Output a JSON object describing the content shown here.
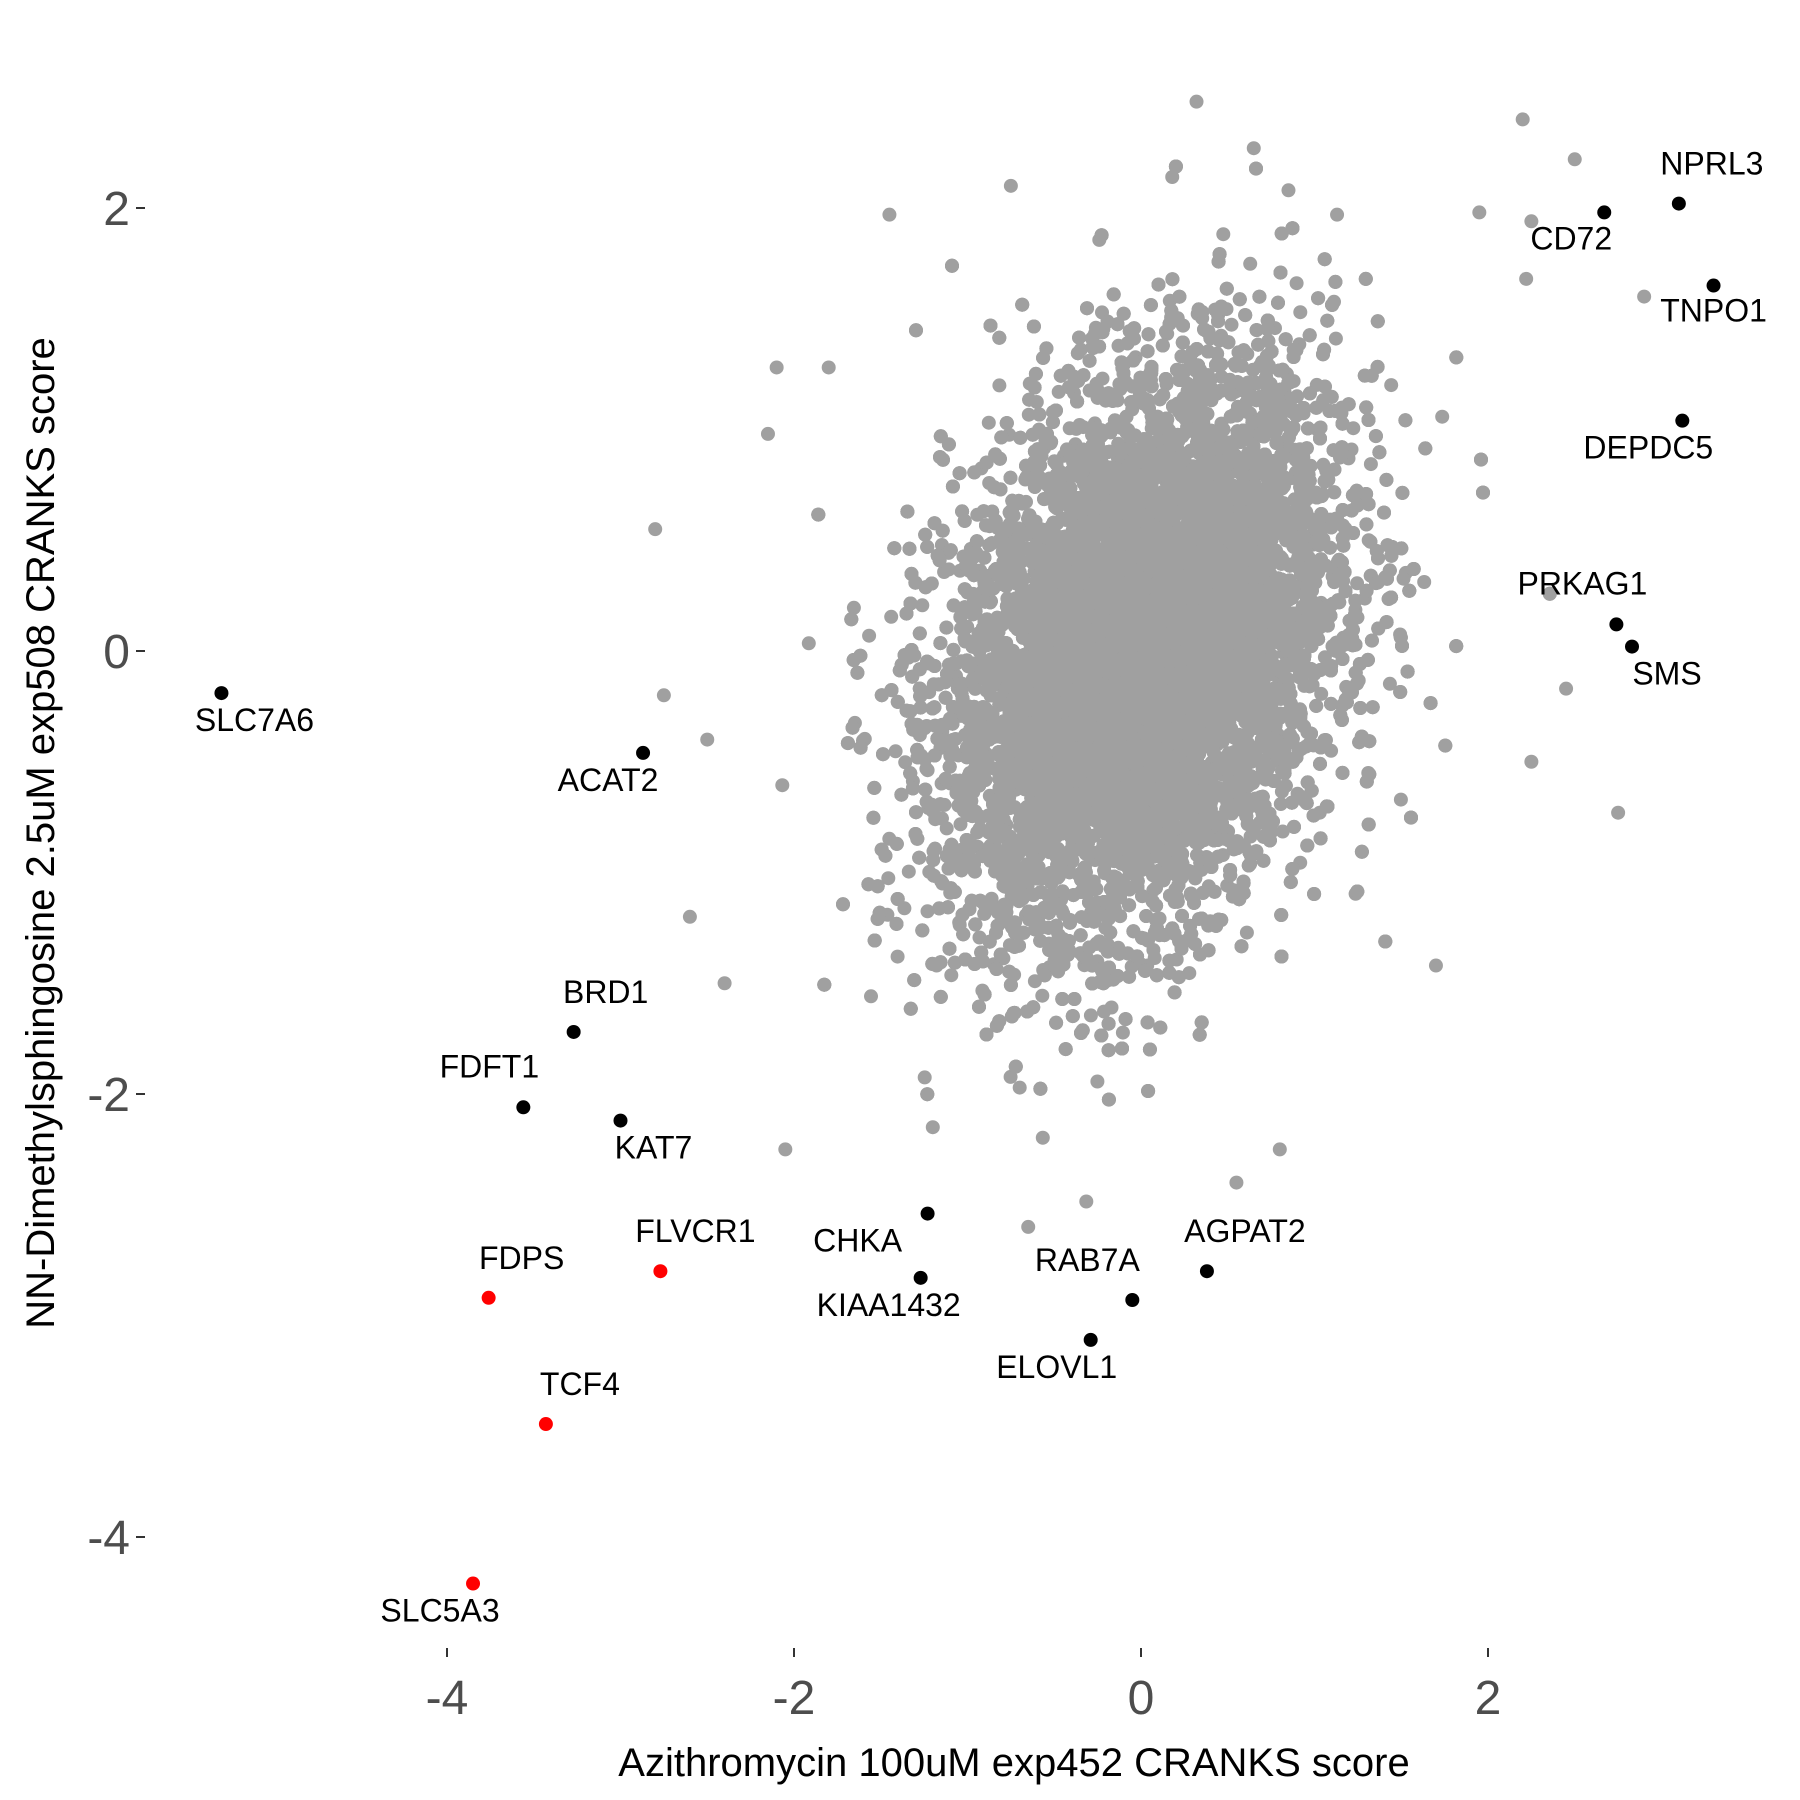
{
  "chart_data": {
    "type": "scatter",
    "title": "",
    "xlabel": "Azithromycin 100uM exp452 CRANKS score",
    "ylabel": "NN-Dimethylsphingosine 2.5uM exp508 CRANKS score",
    "xlim": [
      -5.35,
      3.55
    ],
    "ylim": [
      -4.55,
      2.52
    ],
    "x_ticks": [
      -4,
      -2,
      0,
      2
    ],
    "y_ticks": [
      -4,
      -2,
      0,
      2
    ],
    "x_tick_labels": [
      "-4",
      "-2",
      "0",
      "2"
    ],
    "y_tick_labels": [
      "-4",
      "-2",
      "0",
      "2"
    ],
    "grid": false,
    "colors": {
      "background_points": "#a0a0a0",
      "highlight": "#000000",
      "highlight_red": "#ff0000"
    },
    "background_cloud": {
      "description_count": 18000,
      "center": [
        0.0,
        0.0
      ],
      "sd": [
        0.55,
        0.62
      ],
      "correlation": 0.3,
      "outliers": [
        [
          0.32,
          2.48
        ],
        [
          2.2,
          2.4
        ],
        [
          0.65,
          2.27
        ],
        [
          2.5,
          2.22
        ],
        [
          -0.75,
          2.1
        ],
        [
          0.85,
          2.08
        ],
        [
          0.18,
          2.14
        ],
        [
          1.13,
          1.97
        ],
        [
          1.95,
          1.98
        ],
        [
          2.25,
          1.94
        ],
        [
          -1.45,
          1.97
        ],
        [
          2.9,
          1.6
        ],
        [
          2.22,
          1.68
        ],
        [
          -2.1,
          1.28
        ],
        [
          -1.8,
          1.28
        ],
        [
          -2.15,
          0.98
        ],
        [
          -2.8,
          0.55
        ],
        [
          -2.75,
          -0.2
        ],
        [
          -2.5,
          -0.4
        ],
        [
          -1.2,
          -2.15
        ],
        [
          1.7,
          -1.42
        ],
        [
          0.55,
          -2.4
        ],
        [
          0.8,
          -2.25
        ],
        [
          -2.05,
          -2.25
        ],
        [
          -0.65,
          -2.6
        ],
        [
          2.75,
          -0.73
        ],
        [
          2.45,
          -0.17
        ],
        [
          2.25,
          -0.5
        ],
        [
          -2.4,
          -1.5
        ],
        [
          -2.6,
          -1.2
        ]
      ]
    },
    "series": [
      {
        "color": "#000000",
        "points": [
          {
            "label": "NPRL3",
            "x": 3.1,
            "y": 2.02
          },
          {
            "label": "CD72",
            "x": 2.67,
            "y": 1.98
          },
          {
            "label": "TNPO1",
            "x": 3.3,
            "y": 1.65
          },
          {
            "label": "DEPDC5",
            "x": 3.12,
            "y": 1.04
          },
          {
            "label": "PRKAG1",
            "x": 2.74,
            "y": 0.12
          },
          {
            "label": "SMS",
            "x": 2.83,
            "y": 0.02
          },
          {
            "label": "SLC7A6",
            "x": -5.3,
            "y": -0.19
          },
          {
            "label": "ACAT2",
            "x": -2.87,
            "y": -0.46
          },
          {
            "label": "BRD1",
            "x": -3.27,
            "y": -1.72
          },
          {
            "label": "FDFT1",
            "x": -3.56,
            "y": -2.06
          },
          {
            "label": "KAT7",
            "x": -3.0,
            "y": -2.12
          },
          {
            "label": "CHKA",
            "x": -1.23,
            "y": -2.54
          },
          {
            "label": "KIAA1432",
            "x": -1.27,
            "y": -2.83
          },
          {
            "label": "AGPAT2",
            "x": 0.38,
            "y": -2.8
          },
          {
            "label": "RAB7A",
            "x": -0.05,
            "y": -2.93
          },
          {
            "label": "ELOVL1",
            "x": -0.29,
            "y": -3.11
          }
        ]
      },
      {
        "color": "#ff0000",
        "points": [
          {
            "label": "FLVCR1",
            "x": -2.77,
            "y": -2.8
          },
          {
            "label": "FDPS",
            "x": -3.76,
            "y": -2.92
          },
          {
            "label": "TCF4",
            "x": -3.43,
            "y": -3.49
          },
          {
            "label": "SLC5A3",
            "x": -3.85,
            "y": -4.21
          }
        ]
      }
    ]
  }
}
